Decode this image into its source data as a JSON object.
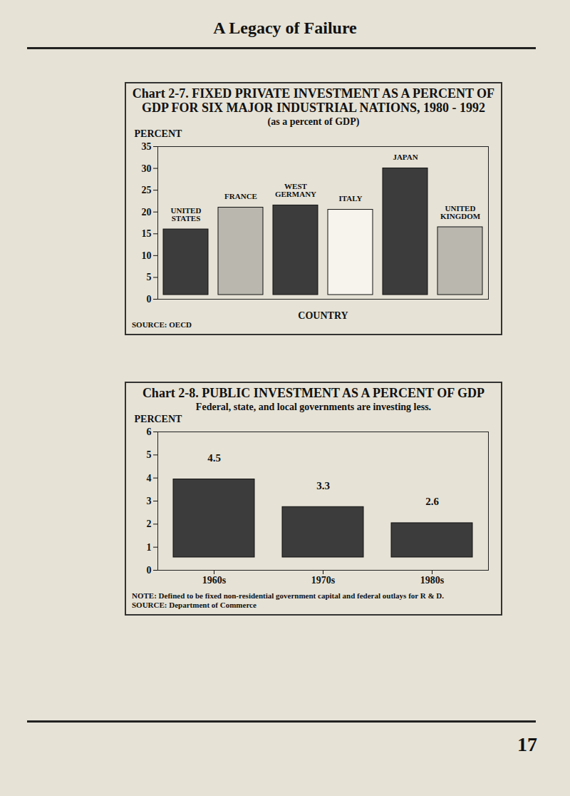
{
  "page": {
    "header": "A Legacy of Failure",
    "page_number": "17"
  },
  "chart_data": [
    {
      "type": "bar",
      "title": "Chart 2-7. FIXED PRIVATE INVESTMENT AS A PERCENT OF GDP FOR SIX MAJOR INDUSTRIAL NATIONS, 1980 - 1992",
      "subtitle": "(as a percent of GDP)",
      "y_label": "PERCENT",
      "x_label": "COUNTRY",
      "source": "SOURCE: OECD",
      "categories": [
        "UNITED STATES",
        "FRANCE",
        "WEST GERMANY",
        "ITALY",
        "JAPAN",
        "UNITED KINGDOM"
      ],
      "values": [
        17,
        22,
        22.5,
        21.5,
        31,
        17.5
      ],
      "colors": [
        "#3c3c3c",
        "#b9b7ae",
        "#3c3c3c",
        "#f6f4ec",
        "#3c3c3c",
        "#b9b7ae"
      ],
      "ylim": [
        0,
        35
      ],
      "yticks": [
        0,
        5,
        10,
        15,
        20,
        25,
        30,
        35
      ],
      "tick_labels": "y",
      "data_labels": false
    },
    {
      "type": "bar",
      "title": "Chart 2-8. PUBLIC INVESTMENT AS A PERCENT OF GDP",
      "subtitle": "Federal, state, and local governments are investing less.",
      "y_label": "PERCENT",
      "note": "NOTE: Defined to be fixed non-residential government capital and federal outlays for R & D.",
      "source": "SOURCE: Department of Commerce",
      "categories": [
        "1960s",
        "1970s",
        "1980s"
      ],
      "values": [
        4.5,
        3.3,
        2.6
      ],
      "color": "#3c3c3c",
      "ylim": [
        0,
        6
      ],
      "yticks": [
        0,
        1,
        2,
        3,
        4,
        5,
        6
      ],
      "data_labels": true
    }
  ]
}
